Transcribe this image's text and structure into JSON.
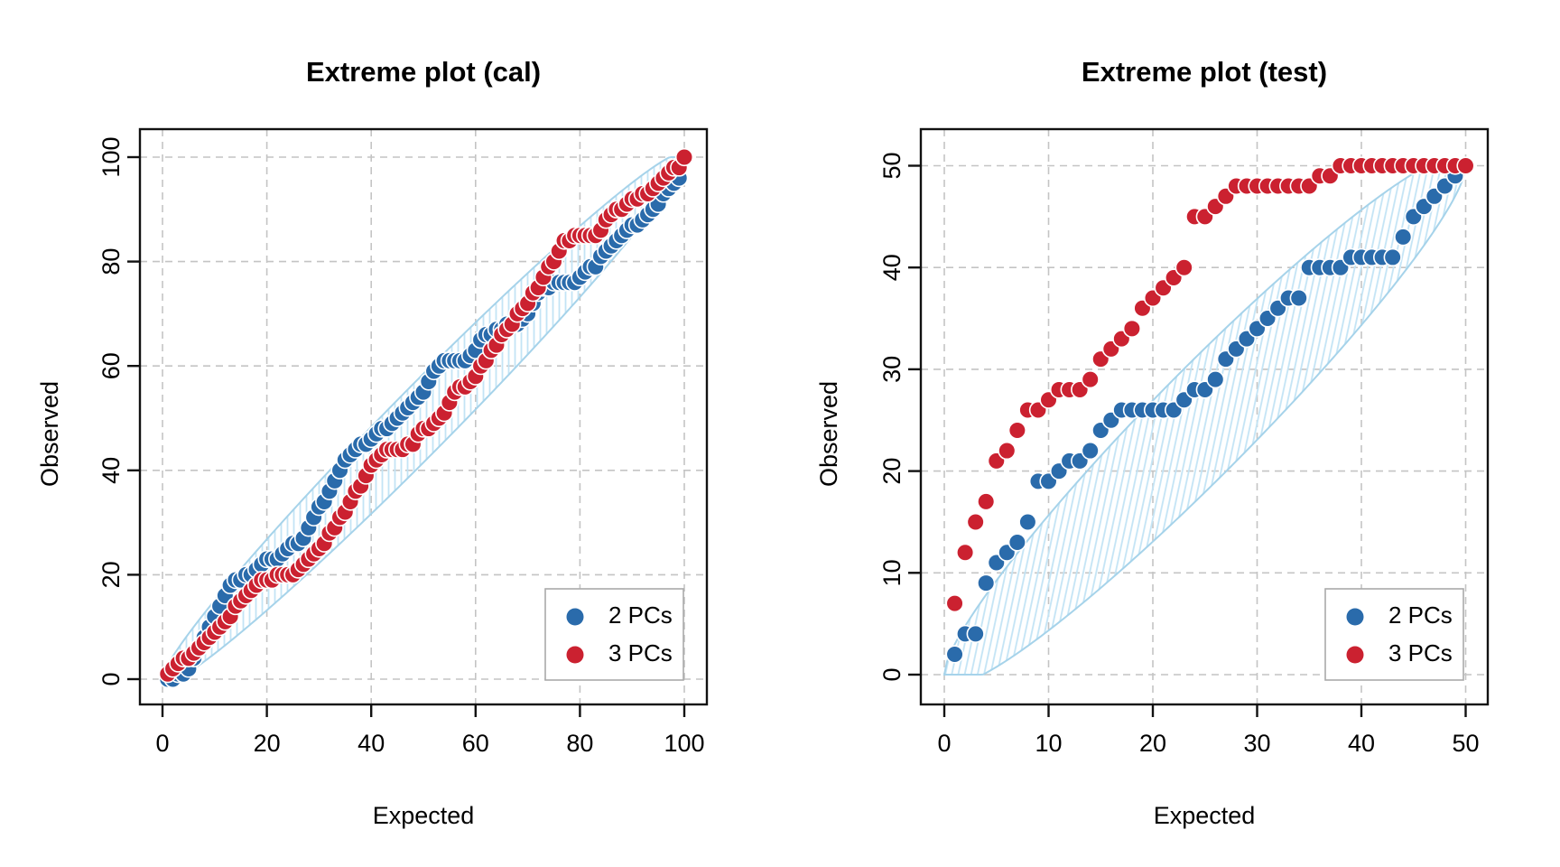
{
  "chart_data": [
    {
      "type": "scatter",
      "title": "Extreme plot (cal)",
      "xlabel": "Expected",
      "ylabel": "Observed",
      "xlim": [
        0,
        100
      ],
      "ylim": [
        0,
        100
      ],
      "x_ticks": [
        0,
        20,
        40,
        60,
        80,
        100
      ],
      "y_ticks": [
        0,
        20,
        40,
        60,
        80,
        100
      ],
      "grid": true,
      "legend_position": "bottom-right",
      "x_range": [
        1,
        100
      ],
      "envelope": {
        "shape": "lens-around-diagonal",
        "half_width_k": 1.7,
        "line_color": "#A6D3EA",
        "hatch_color": "#C3E4F5",
        "hatch": "vertical"
      },
      "series": [
        {
          "name": "2 PCs",
          "color": "#2A6BAB",
          "y": [
            0,
            0,
            1,
            1,
            2,
            4,
            6,
            8,
            10,
            12,
            14,
            16,
            18,
            19,
            19,
            20,
            20,
            21,
            22,
            23,
            23,
            23,
            24,
            25,
            26,
            26,
            27,
            29,
            31,
            33,
            34,
            36,
            38,
            40,
            42,
            43,
            44,
            45,
            45,
            46,
            47,
            48,
            48,
            49,
            50,
            51,
            52,
            53,
            54,
            55,
            57,
            59,
            60,
            61,
            61,
            61,
            61,
            61,
            62,
            63,
            65,
            66,
            66,
            67,
            67,
            68,
            68,
            68,
            69,
            70,
            72,
            74,
            75,
            75,
            76,
            76,
            76,
            76,
            76,
            77,
            78,
            79,
            79,
            81,
            82,
            83,
            84,
            85,
            86,
            87,
            87,
            88,
            89,
            90,
            91,
            93,
            94,
            95,
            96,
            100
          ]
        },
        {
          "name": "3 PCs",
          "color": "#CB2130",
          "y": [
            1,
            2,
            3,
            4,
            4,
            5,
            6,
            7,
            8,
            9,
            10,
            11,
            12,
            14,
            15,
            16,
            17,
            18,
            19,
            19,
            19,
            20,
            20,
            20,
            20,
            21,
            22,
            23,
            24,
            25,
            26,
            28,
            29,
            31,
            32,
            34,
            36,
            37,
            39,
            41,
            42,
            43,
            44,
            44,
            44,
            44,
            45,
            45,
            47,
            48,
            48,
            49,
            50,
            51,
            53,
            55,
            56,
            56,
            57,
            58,
            60,
            61,
            63,
            64,
            66,
            67,
            68,
            70,
            71,
            72,
            74,
            75,
            77,
            79,
            80,
            82,
            84,
            84,
            85,
            85,
            85,
            85,
            85,
            86,
            88,
            89,
            90,
            90,
            91,
            92,
            92,
            93,
            93,
            94,
            95,
            96,
            97,
            98,
            98,
            100
          ]
        }
      ]
    },
    {
      "type": "scatter",
      "title": "Extreme plot (test)",
      "xlabel": "Expected",
      "ylabel": "Observed",
      "xlim": [
        0,
        50
      ],
      "ylim": [
        0,
        50
      ],
      "x_ticks": [
        0,
        10,
        20,
        30,
        40,
        50
      ],
      "y_ticks": [
        0,
        10,
        20,
        30,
        40,
        50
      ],
      "grid": true,
      "legend_position": "bottom-right",
      "x_range": [
        1,
        50
      ],
      "envelope": {
        "shape": "lens-around-diagonal",
        "half_width_k": 2.0,
        "line_color": "#A6D3EA",
        "hatch_color": "#C3E4F5",
        "hatch": "slanted"
      },
      "series": [
        {
          "name": "2 PCs",
          "color": "#2A6BAB",
          "y": [
            2,
            4,
            4,
            9,
            11,
            12,
            13,
            15,
            19,
            19,
            20,
            21,
            21,
            22,
            24,
            25,
            26,
            26,
            26,
            26,
            26,
            26,
            27,
            28,
            28,
            29,
            31,
            32,
            33,
            34,
            35,
            36,
            37,
            37,
            40,
            40,
            40,
            40,
            41,
            41,
            41,
            41,
            41,
            43,
            45,
            46,
            47,
            48,
            49,
            50
          ]
        },
        {
          "name": "3 PCs",
          "color": "#CB2130",
          "y": [
            7,
            12,
            15,
            17,
            21,
            22,
            24,
            26,
            26,
            27,
            28,
            28,
            28,
            29,
            31,
            32,
            33,
            34,
            36,
            37,
            38,
            39,
            40,
            45,
            45,
            46,
            47,
            48,
            48,
            48,
            48,
            48,
            48,
            48,
            48,
            49,
            49,
            50,
            50,
            50,
            50,
            50,
            50,
            50,
            50,
            50,
            50,
            50,
            50,
            50
          ]
        }
      ]
    }
  ],
  "style": {
    "grid_color": "#C4C4C4",
    "axis_color": "#111111",
    "tick_label_color": "#000000",
    "legend_border_color": "#AAAAAA",
    "point_radius": 9.3
  }
}
